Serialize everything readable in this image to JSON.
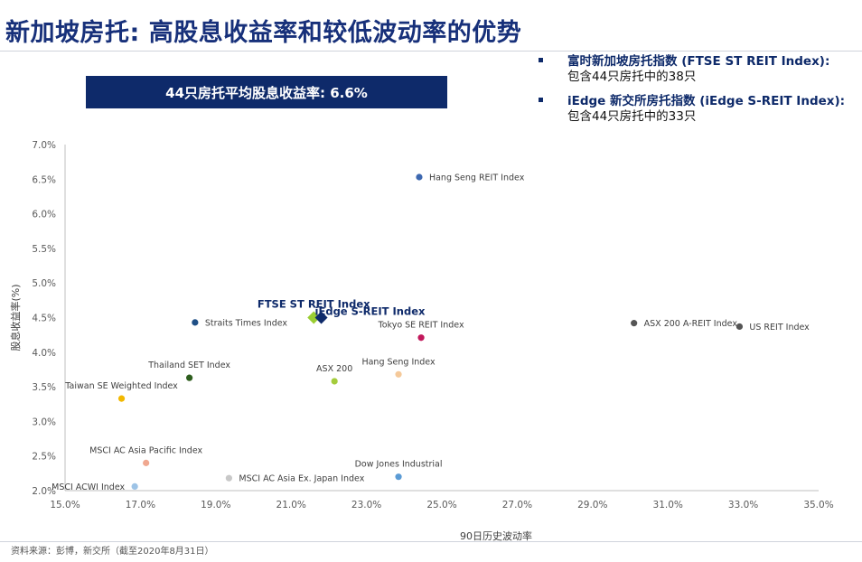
{
  "page": {
    "title": "新加坡房托: 高股息收益率和较低波动率的优势",
    "banner": "44只房托平均股息收益率: 6.6%",
    "notes": [
      {
        "head": "富时新加坡房托指数 (FTSE ST REIT Index):",
        "sub": "包含44只房托中的38只"
      },
      {
        "head": "iEdge 新交所房托指数 (iEdge S-REIT Index):",
        "sub": "包含44只房托中的33只"
      }
    ],
    "footer": "资料来源：彭博，新交所（截至2020年8月31日）"
  },
  "chart_data": {
    "type": "scatter",
    "xlabel": "90日历史波动率",
    "ylabel": "股息收益率(%)",
    "xlim": [
      15,
      35
    ],
    "ylim": [
      2,
      7
    ],
    "x_ticks": [
      "15.0%",
      "17.0%",
      "19.0%",
      "21.0%",
      "23.0%",
      "25.0%",
      "27.0%",
      "29.0%",
      "31.0%",
      "33.0%",
      "35.0%"
    ],
    "y_ticks": [
      "2.0%",
      "2.5%",
      "3.0%",
      "3.5%",
      "4.0%",
      "4.5%",
      "5.0%",
      "5.5%",
      "6.0%",
      "6.5%",
      "7.0%"
    ],
    "grid": false,
    "points": [
      {
        "name": "Hang Seng REIT Index",
        "x": 24.4,
        "y": 6.53,
        "color": "#3d68b0",
        "marker": "circle",
        "label_pos": "right"
      },
      {
        "name": "Straits Times Index",
        "x": 18.45,
        "y": 4.43,
        "color": "#1f4f86",
        "marker": "circle",
        "label_pos": "right"
      },
      {
        "name": "FTSE ST REIT Index",
        "x": 21.6,
        "y": 4.5,
        "color": "#9acd32",
        "marker": "diamond",
        "label_pos": "above",
        "highlight": true
      },
      {
        "name": "iEdge S-REIT Index",
        "x": 21.8,
        "y": 4.5,
        "color": "#0e2a6a",
        "marker": "diamond",
        "label_pos": "right-above",
        "highlight": true
      },
      {
        "name": "Tokyo SE REIT Index",
        "x": 24.45,
        "y": 4.21,
        "color": "#c2185b",
        "marker": "circle",
        "label_pos": "above"
      },
      {
        "name": "ASX 200 A-REIT Index",
        "x": 30.1,
        "y": 4.42,
        "color": "#555555",
        "marker": "circle",
        "label_pos": "right"
      },
      {
        "name": "US REIT Index",
        "x": 32.9,
        "y": 4.37,
        "color": "#555555",
        "marker": "circle",
        "label_pos": "right"
      },
      {
        "name": "Thailand SET Index",
        "x": 18.3,
        "y": 3.63,
        "color": "#2e5e1e",
        "marker": "circle",
        "label_pos": "above"
      },
      {
        "name": "ASX 200",
        "x": 22.15,
        "y": 3.58,
        "color": "#a4cc3c",
        "marker": "circle",
        "label_pos": "above"
      },
      {
        "name": "Hang Seng Index",
        "x": 23.85,
        "y": 3.68,
        "color": "#f5c99a",
        "marker": "circle",
        "label_pos": "above"
      },
      {
        "name": "Taiwan SE Weighted Index",
        "x": 16.5,
        "y": 3.33,
        "color": "#f2b800",
        "marker": "circle",
        "label_pos": "above"
      },
      {
        "name": "MSCI AC Asia Pacific Index",
        "x": 17.15,
        "y": 2.4,
        "color": "#f0a890",
        "marker": "circle",
        "label_pos": "above"
      },
      {
        "name": "MSCI AC Asia Ex. Japan Index",
        "x": 19.35,
        "y": 2.18,
        "color": "#c8c8c8",
        "marker": "circle",
        "label_pos": "right"
      },
      {
        "name": "Dow Jones Industrial",
        "x": 23.85,
        "y": 2.2,
        "color": "#5b9bd5",
        "marker": "circle",
        "label_pos": "above"
      },
      {
        "name": "MSCI ACWI Index",
        "x": 16.85,
        "y": 2.06,
        "color": "#9dc3e6",
        "marker": "circle",
        "label_pos": "left"
      }
    ]
  }
}
